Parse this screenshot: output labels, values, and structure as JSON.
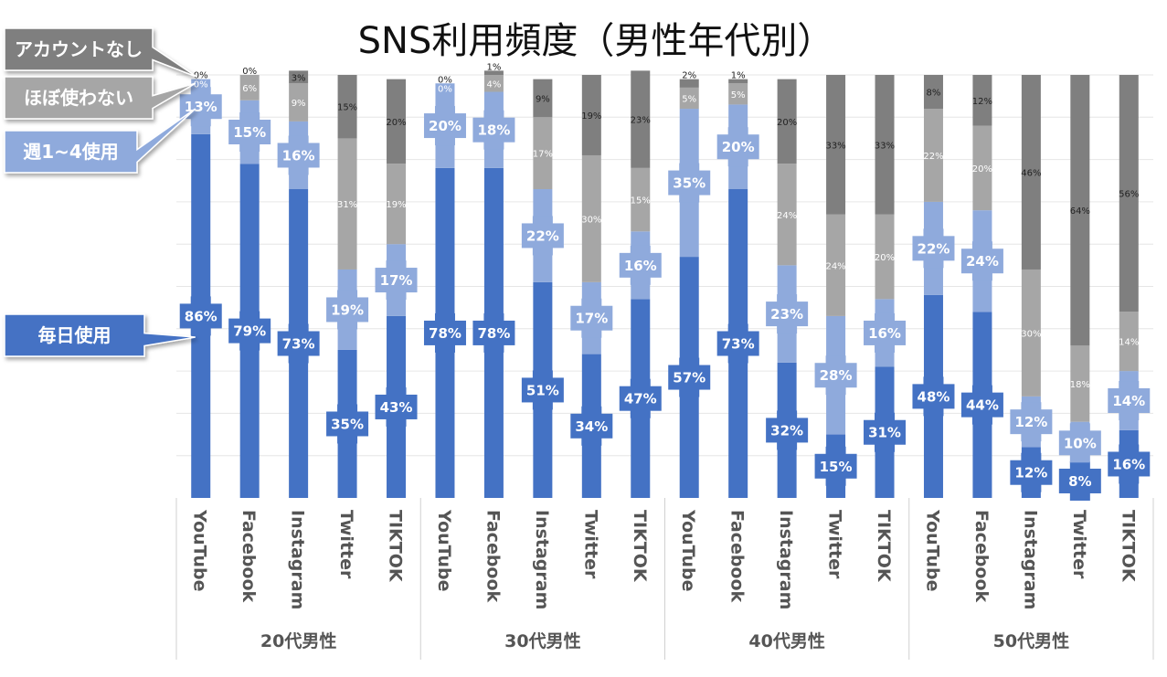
{
  "chart_data": {
    "type": "bar",
    "stacked": true,
    "title": "SNS利用頻度（男性年代別）",
    "groups": [
      "20代男性",
      "30代男性",
      "40代男性",
      "50代男性"
    ],
    "categories": [
      "YouTube",
      "Facebook",
      "Instagram",
      "Twitter",
      "TIKTOK"
    ],
    "series": [
      {
        "name": "毎日使用",
        "color": "#4472c4",
        "values": [
          [
            86,
            79,
            73,
            35,
            43
          ],
          [
            78,
            78,
            51,
            34,
            47
          ],
          [
            57,
            73,
            32,
            15,
            31
          ],
          [
            48,
            44,
            12,
            8,
            16
          ]
        ]
      },
      {
        "name": "週1~4使用",
        "color": "#8faadc",
        "values": [
          [
            13,
            15,
            16,
            19,
            17
          ],
          [
            20,
            18,
            22,
            17,
            16
          ],
          [
            35,
            20,
            23,
            28,
            16
          ],
          [
            22,
            24,
            12,
            10,
            14
          ]
        ]
      },
      {
        "name": "ほぼ使わない",
        "color": "#a6a6a6",
        "values": [
          [
            0,
            6,
            9,
            31,
            19
          ],
          [
            0,
            4,
            17,
            30,
            15
          ],
          [
            5,
            5,
            24,
            24,
            20
          ],
          [
            22,
            20,
            30,
            18,
            14
          ]
        ]
      },
      {
        "name": "アカウントなし",
        "color": "#7f7f7f",
        "values": [
          [
            0,
            0,
            3,
            15,
            20
          ],
          [
            0,
            1,
            9,
            19,
            23
          ],
          [
            2,
            1,
            20,
            33,
            33
          ],
          [
            8,
            12,
            46,
            64,
            56
          ]
        ]
      }
    ],
    "ylim": [
      0,
      100
    ],
    "grid": true
  }
}
